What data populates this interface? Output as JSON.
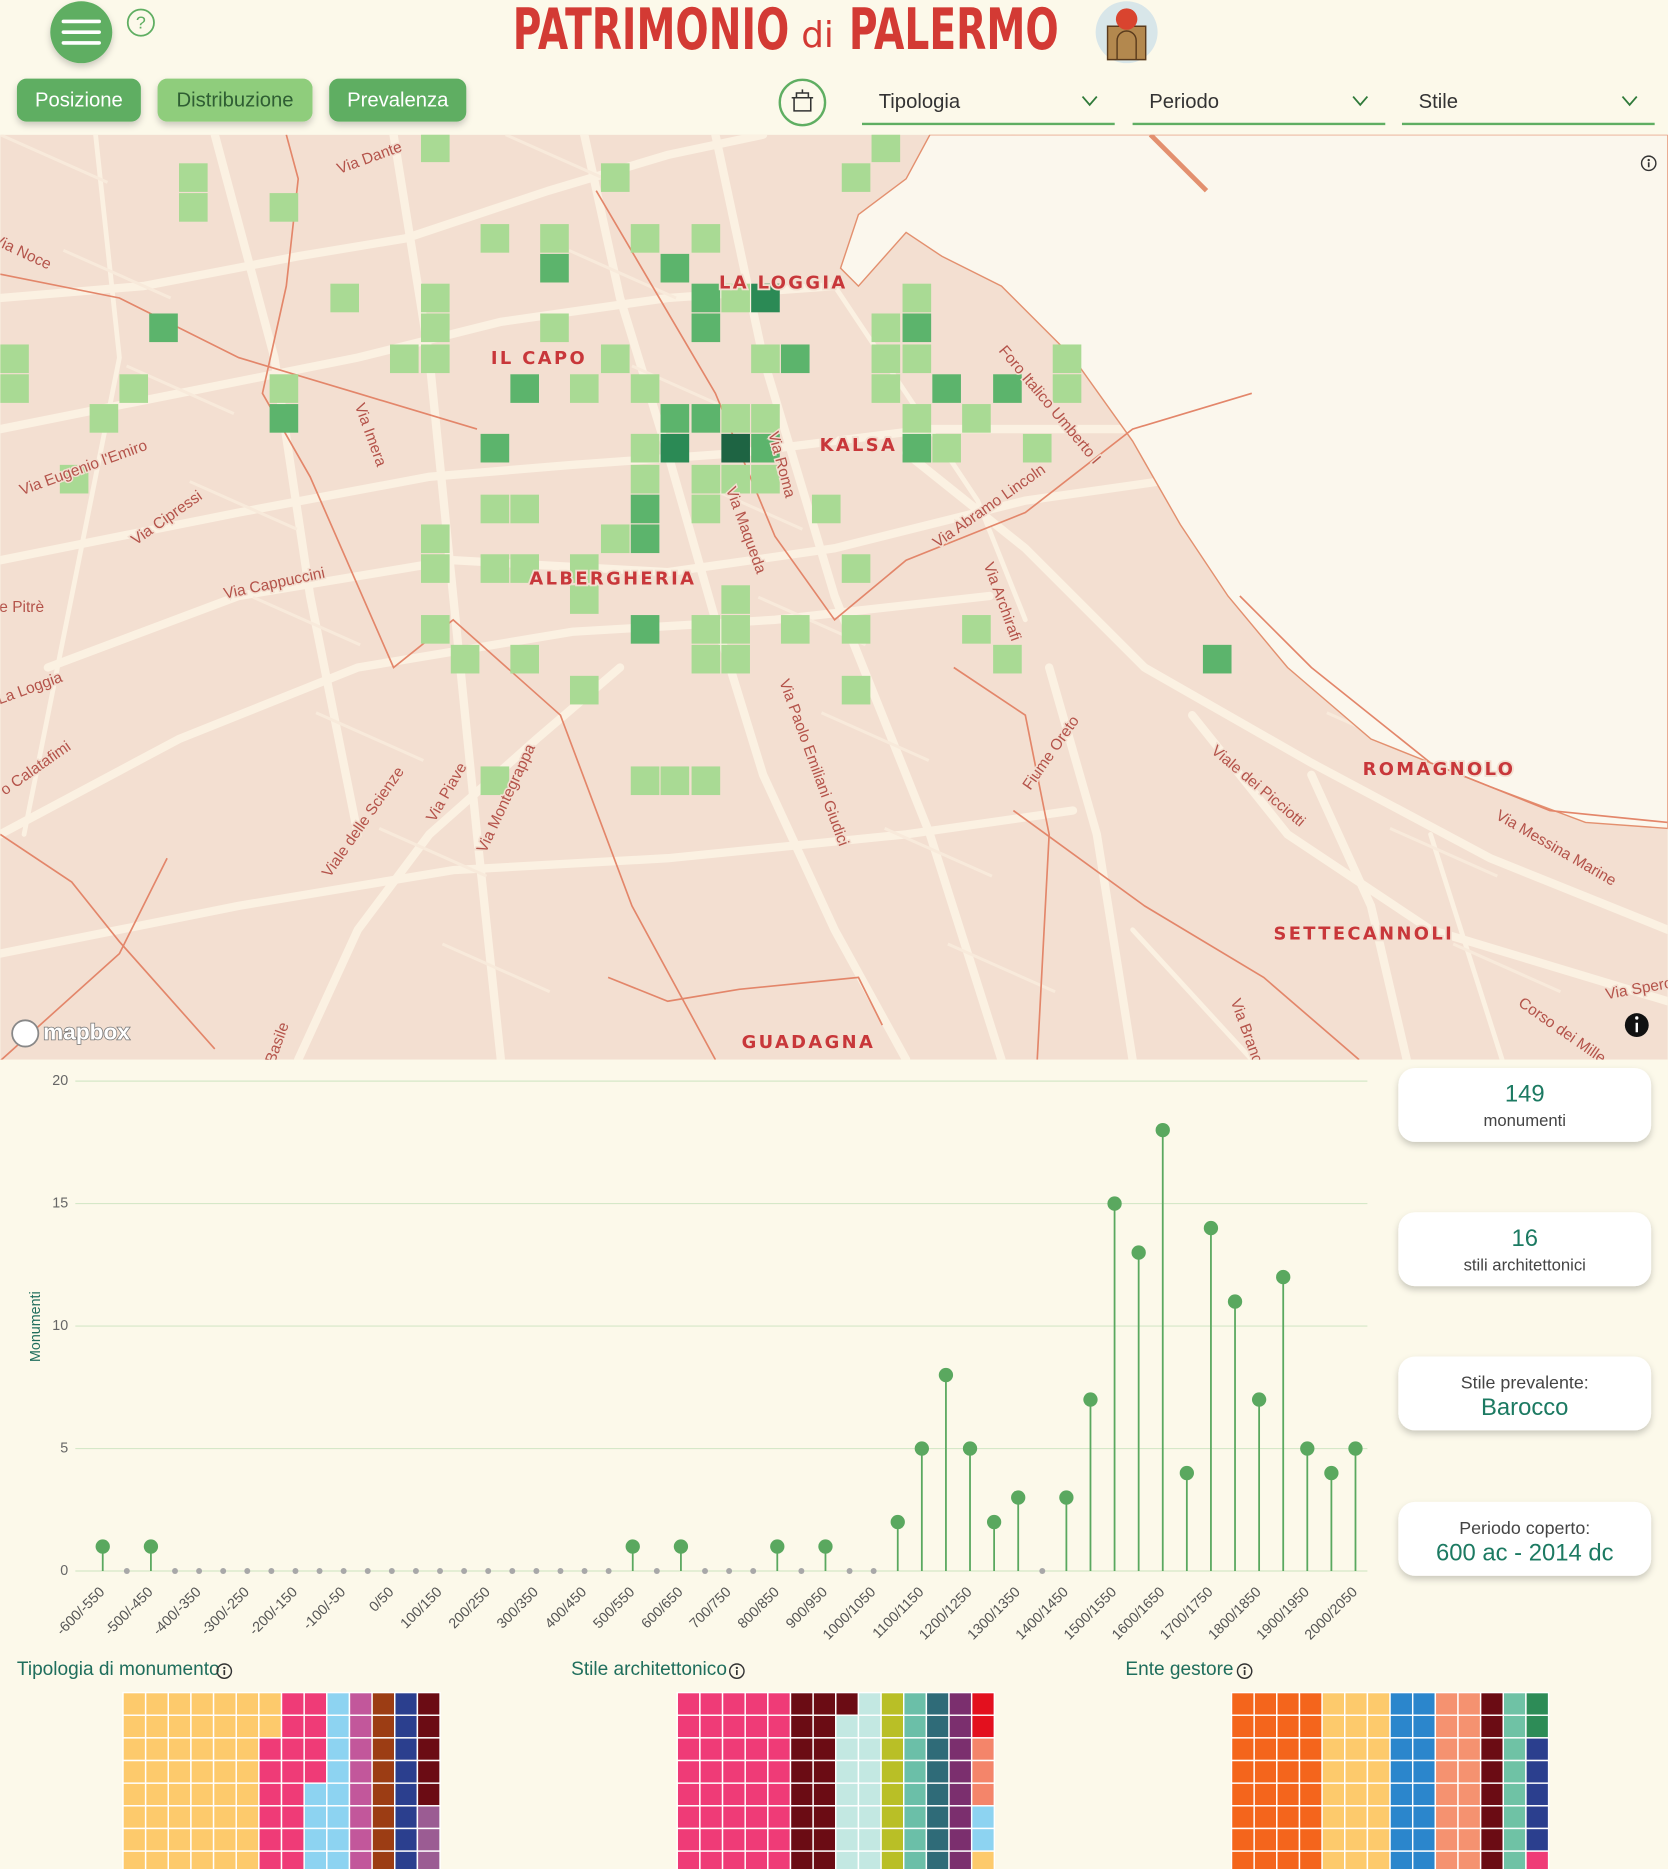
{
  "header": {
    "title_main": "PATRIMONIO",
    "title_di": "di",
    "title_city": "PALERMO",
    "help": "?"
  },
  "tabs": [
    "Posizione",
    "Distribuzione",
    "Prevalenza"
  ],
  "filters": [
    "Tipologia",
    "Periodo",
    "Stile"
  ],
  "map": {
    "districts": [
      "LA LOGGIA",
      "IL CAPO",
      "KALSA",
      "ALBERGHERIA",
      "ROMAGNOLO",
      "SETTECANNOLI",
      "GUADAGNA"
    ],
    "streets": [
      "Via Dante",
      "Via Noce",
      "Via Imera",
      "Via Eugenio l'Emiro",
      "Via Cipressi",
      "Via Cappuccini",
      "e Pitrè",
      "La Loggia",
      "o Calatafimi",
      "Viale delle Scienze",
      "Via Piave",
      "Via Montegrappa",
      "Basile",
      "Via Roma",
      "Via Maqueda",
      "Via Paolo Emiliani Giudici",
      "Foro Italico Umberto I",
      "Via Abramo Lincoln",
      "Via Archirafi",
      "Fiume Oreto",
      "Viale dei Picciotti",
      "Via Messina Marine",
      "Via Spero",
      "Corso dei Mille",
      "Via Branc"
    ],
    "attribution": "mapbox"
  },
  "chart_data": {
    "type": "lollipop",
    "y_label": "Monumenti",
    "categories": [
      "-600/-550",
      null,
      "-500/-450",
      null,
      "-400/-350",
      null,
      "-300/-250",
      null,
      "-200/-150",
      null,
      "-100/-50",
      null,
      "0/50",
      null,
      "100/150",
      null,
      "200/250",
      null,
      "300/350",
      null,
      "400/450",
      null,
      "500/550",
      null,
      "600/650",
      null,
      "700/750",
      null,
      "800/850",
      null,
      "900/950",
      null,
      "1000/1050",
      null,
      "1100/1150",
      null,
      "1200/1250",
      null,
      "1300/1350",
      null,
      "1400/1450",
      null,
      "1500/1550",
      null,
      "1600/1650",
      null,
      "1700/1750",
      null,
      "1800/1850",
      null,
      "1900/1950",
      null,
      "2000/2050"
    ],
    "values": [
      1,
      0,
      1,
      0,
      0,
      0,
      0,
      0,
      0,
      0,
      0,
      0,
      0,
      0,
      0,
      0,
      0,
      0,
      0,
      0,
      0,
      0,
      1,
      0,
      1,
      0,
      0,
      0,
      1,
      0,
      1,
      0,
      0,
      2,
      5,
      8,
      5,
      2,
      3,
      0,
      3,
      7,
      15,
      13,
      18,
      4,
      14,
      11,
      7,
      12,
      5,
      4,
      5
    ],
    "ylim": [
      0,
      20
    ],
    "yticks": [
      0,
      5,
      10,
      15,
      20
    ],
    "color": "#5aa85f",
    "grid": true
  },
  "stats": [
    {
      "value": "149",
      "label": "monumenti"
    },
    {
      "value": "16",
      "label": "stili architettonici"
    },
    {
      "label": "Stile prevalente:",
      "value": "Barocco"
    },
    {
      "label": "Periodo coperto:",
      "value": "600 ac - 2014 dc"
    }
  ],
  "waffles": [
    {
      "title": "Tipologia di monumento"
    },
    {
      "title": "Stile architettonico"
    },
    {
      "title": "Ente gestore"
    }
  ]
}
